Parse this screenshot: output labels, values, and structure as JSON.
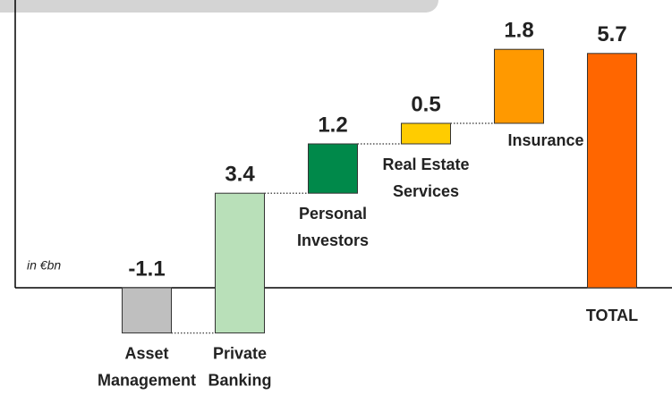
{
  "chart_data": {
    "type": "waterfall",
    "annotation": "in €bn",
    "categories": [
      [
        "Asset",
        "Management"
      ],
      [
        "Private",
        "Banking"
      ],
      [
        "Personal",
        "Investors"
      ],
      [
        "Real Estate",
        "Services"
      ],
      [
        "Insurance"
      ],
      [
        "TOTAL"
      ]
    ],
    "values": [
      -1.1,
      3.4,
      1.2,
      0.5,
      1.8,
      5.7
    ],
    "colors": [
      "#bfbfbf",
      "#b9e0b9",
      "#00894a",
      "#ffcc00",
      "#ff9900",
      "#ff6600"
    ],
    "last_is_total": true
  }
}
